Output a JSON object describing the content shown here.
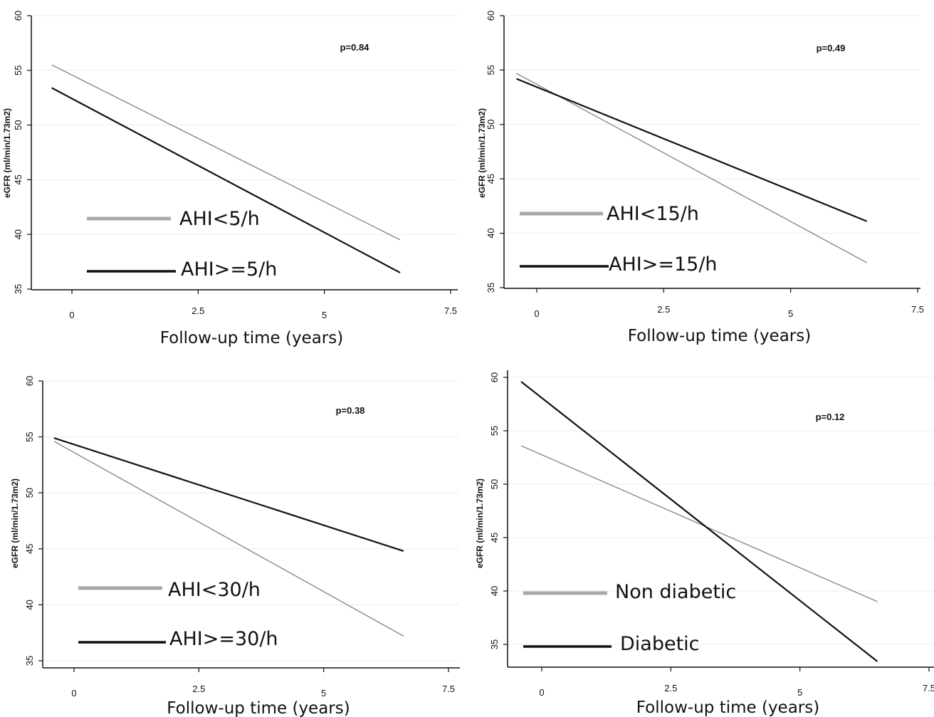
{
  "chart_data": [
    {
      "type": "line",
      "ylabel": "eGFR (ml/min/1.73m2)",
      "xlabel": "Follow-up time (years)",
      "annotation": "p=0.84",
      "xlim": [
        -0.4,
        7.5
      ],
      "ylim": [
        35,
        60
      ],
      "xticks": [
        0,
        2.5,
        5,
        7.5
      ],
      "xtick_labels": [
        "0",
        "2.5",
        "5",
        "7.5"
      ],
      "yticks": [
        35,
        40,
        45,
        50,
        55,
        60
      ],
      "ytick_labels": [
        "35",
        "40",
        "45",
        "50",
        "55",
        "60"
      ],
      "grid": true,
      "series": [
        {
          "name": "AHI<5/h",
          "color": "#8a8a8a",
          "legend_color": "#a8a8a8",
          "width": 1.4,
          "x": [
            -0.4,
            6.5
          ],
          "y": [
            55.5,
            39.5
          ]
        },
        {
          "name": "AHI>=5/h",
          "color": "#111111",
          "legend_color": "#111111",
          "width": 2.2,
          "x": [
            -0.4,
            6.5
          ],
          "y": [
            53.4,
            36.5
          ]
        }
      ]
    },
    {
      "type": "line",
      "ylabel": "eGFR (ml/min/1.73m2)",
      "xlabel": "Follow-up time (years)",
      "annotation": "p=0.49",
      "xlim": [
        -0.4,
        7.5
      ],
      "ylim": [
        35,
        60
      ],
      "xticks": [
        0,
        2.5,
        5,
        7.5
      ],
      "xtick_labels": [
        "0",
        "2.5",
        "5",
        "7.5"
      ],
      "yticks": [
        35,
        40,
        45,
        50,
        55,
        60
      ],
      "ytick_labels": [
        "35",
        "40",
        "45",
        "50",
        "55",
        "60"
      ],
      "grid": true,
      "series": [
        {
          "name": "AHI<15/h",
          "color": "#8a8a8a",
          "legend_color": "#a8a8a8",
          "width": 1.4,
          "x": [
            -0.4,
            6.5
          ],
          "y": [
            54.7,
            37.3
          ]
        },
        {
          "name": "AHI>=15/h",
          "color": "#111111",
          "legend_color": "#111111",
          "width": 2.2,
          "x": [
            -0.4,
            6.5
          ],
          "y": [
            54.2,
            41.1
          ]
        }
      ]
    },
    {
      "type": "line",
      "ylabel": "eGFR (ml/min/1.73m2)",
      "xlabel": "Follow-up time (years)",
      "annotation": "p=0.38",
      "xlim": [
        -0.4,
        7.5
      ],
      "ylim": [
        35,
        60
      ],
      "xticks": [
        0,
        2.5,
        5,
        7.5
      ],
      "xtick_labels": [
        "0",
        "2.5",
        "5",
        "7.5"
      ],
      "yticks": [
        35,
        40,
        45,
        50,
        55,
        60
      ],
      "ytick_labels": [
        "35",
        "40",
        "45",
        "50",
        "55",
        "60"
      ],
      "grid": true,
      "series": [
        {
          "name": "AHI<30/h",
          "color": "#8a8a8a",
          "legend_color": "#a8a8a8",
          "width": 1.4,
          "x": [
            -0.4,
            6.6
          ],
          "y": [
            54.6,
            37.2
          ]
        },
        {
          "name": "AHI>=30/h",
          "color": "#111111",
          "legend_color": "#111111",
          "width": 2.2,
          "x": [
            -0.4,
            6.6
          ],
          "y": [
            54.9,
            44.8
          ]
        }
      ]
    },
    {
      "type": "line",
      "ylabel": "eGFR (ml/min/1.73m2)",
      "xlabel": "Follow-up time (years)",
      "annotation": "p=0.12",
      "xlim": [
        -0.4,
        7.5
      ],
      "ylim": [
        35,
        60
      ],
      "xticks": [
        0,
        2.5,
        5,
        7.5
      ],
      "xtick_labels": [
        "0",
        "2.5",
        "5",
        "7.5"
      ],
      "yticks": [
        35,
        40,
        45,
        50,
        55,
        60
      ],
      "ytick_labels": [
        "35",
        "40",
        "45",
        "50",
        "55",
        "60"
      ],
      "grid": true,
      "series": [
        {
          "name": "Non diabetic",
          "color": "#8a8a8a",
          "legend_color": "#a8a8a8",
          "width": 1.4,
          "x": [
            -0.4,
            6.5
          ],
          "y": [
            53.6,
            39.0
          ]
        },
        {
          "name": "Diabetic",
          "color": "#111111",
          "legend_color": "#111111",
          "width": 2.2,
          "x": [
            -0.4,
            6.5
          ],
          "y": [
            59.6,
            33.4
          ]
        }
      ]
    }
  ]
}
